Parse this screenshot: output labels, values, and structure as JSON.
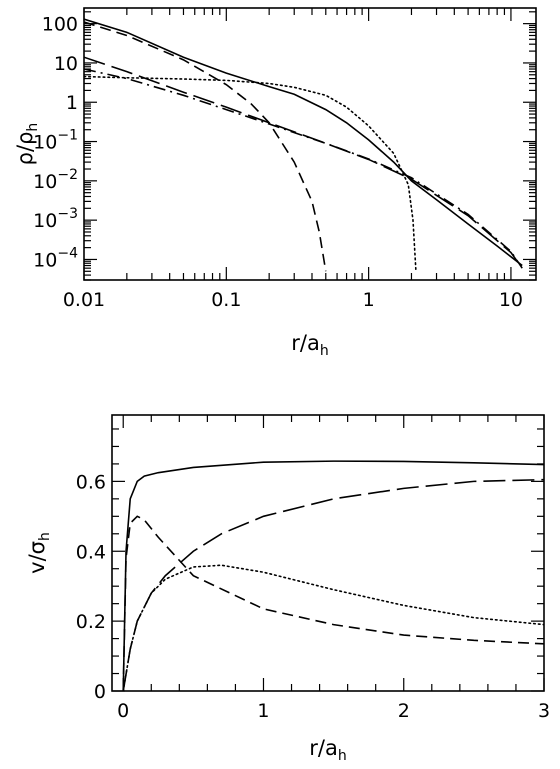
{
  "chart_data": [
    {
      "type": "line",
      "xlabel": "r/a_h",
      "ylabel": "ρ/ρ_h",
      "xscale": "log",
      "yscale": "log",
      "xlim": [
        0.01,
        15
      ],
      "ylim": [
        3e-05,
        250
      ],
      "xticks": [
        {
          "value": 0.01,
          "label": "0.01"
        },
        {
          "value": 0.1,
          "label": "0.1"
        },
        {
          "value": 1,
          "label": "1"
        },
        {
          "value": 10,
          "label": "10"
        }
      ],
      "yticks": [
        {
          "value": 100,
          "label": "100",
          "base": "",
          "exp": ""
        },
        {
          "value": 10,
          "label": "10",
          "base": "",
          "exp": ""
        },
        {
          "value": 1,
          "label": "1",
          "base": "",
          "exp": ""
        },
        {
          "value": 0.1,
          "label": "",
          "base": "10",
          "exp": "−1"
        },
        {
          "value": 0.01,
          "label": "",
          "base": "10",
          "exp": "−2"
        },
        {
          "value": 0.001,
          "label": "",
          "base": "10",
          "exp": "−3"
        },
        {
          "value": 0.0001,
          "label": "",
          "base": "10",
          "exp": "−4"
        }
      ],
      "series": [
        {
          "style": "solid",
          "x": [
            0.01,
            0.02,
            0.05,
            0.1,
            0.2,
            0.3,
            0.5,
            0.7,
            1,
            1.5,
            2,
            3,
            5,
            8,
            12
          ],
          "y": [
            130,
            60,
            14,
            5.5,
            2.5,
            1.6,
            0.65,
            0.3,
            0.11,
            0.03,
            0.01,
            0.0033,
            0.0008,
            0.00022,
            7e-05
          ]
        },
        {
          "style": "dashed",
          "x": [
            0.01,
            0.02,
            0.05,
            0.1,
            0.15,
            0.2,
            0.3,
            0.4,
            0.45,
            0.5
          ],
          "y": [
            110,
            50,
            12,
            2.8,
            0.9,
            0.3,
            0.03,
            0.003,
            0.0005,
            5e-05
          ]
        },
        {
          "style": "dotted",
          "x": [
            0.01,
            0.02,
            0.05,
            0.1,
            0.2,
            0.3,
            0.5,
            0.7,
            1,
            1.5,
            1.9,
            2.05,
            2.15
          ],
          "y": [
            4.5,
            4.2,
            3.9,
            3.6,
            3.0,
            2.4,
            1.5,
            0.75,
            0.25,
            0.05,
            0.008,
            0.001,
            5e-05
          ]
        },
        {
          "style": "long-dashed",
          "x": [
            0.01,
            0.02,
            0.05,
            0.1,
            0.2,
            0.5,
            1,
            2,
            5,
            10,
            12
          ],
          "y": [
            14,
            6,
            1.8,
            0.75,
            0.3,
            0.09,
            0.035,
            0.011,
            0.0013,
            0.00015,
            6e-05
          ]
        },
        {
          "style": "dash-dot",
          "x": [
            0.01,
            0.02,
            0.05,
            0.1,
            0.2,
            0.5,
            1,
            2,
            5,
            10,
            12
          ],
          "y": [
            7,
            4,
            1.5,
            0.65,
            0.28,
            0.09,
            0.036,
            0.012,
            0.0014,
            0.00016,
            6e-05
          ]
        }
      ]
    },
    {
      "type": "line",
      "xlabel": "r/a_h",
      "ylabel": "v/σ_h",
      "xlim": [
        -0.08,
        3
      ],
      "ylim": [
        0,
        0.79
      ],
      "xticks": [
        {
          "value": 0,
          "label": "0"
        },
        {
          "value": 1,
          "label": "1"
        },
        {
          "value": 2,
          "label": "2"
        },
        {
          "value": 3,
          "label": "3"
        }
      ],
      "yticks": [
        {
          "value": 0,
          "label": "0"
        },
        {
          "value": 0.2,
          "label": "0.2"
        },
        {
          "value": 0.4,
          "label": "0.4"
        },
        {
          "value": 0.6,
          "label": "0.6"
        }
      ],
      "series": [
        {
          "style": "solid",
          "x": [
            0,
            0.02,
            0.05,
            0.1,
            0.15,
            0.25,
            0.5,
            1,
            1.5,
            2,
            2.5,
            3
          ],
          "y": [
            0,
            0.4,
            0.55,
            0.6,
            0.615,
            0.625,
            0.64,
            0.655,
            0.658,
            0.657,
            0.653,
            0.648
          ]
        },
        {
          "style": "dashed",
          "x": [
            0,
            0.02,
            0.05,
            0.1,
            0.15,
            0.25,
            0.5,
            1,
            1.5,
            2,
            2.5,
            3
          ],
          "y": [
            0,
            0.38,
            0.48,
            0.5,
            0.49,
            0.44,
            0.33,
            0.235,
            0.19,
            0.16,
            0.145,
            0.135
          ]
        },
        {
          "style": "dotted",
          "x": [
            0,
            0.05,
            0.1,
            0.2,
            0.3,
            0.5,
            0.7,
            1,
            1.5,
            2,
            2.5,
            3
          ],
          "y": [
            0,
            0.12,
            0.2,
            0.28,
            0.32,
            0.355,
            0.36,
            0.34,
            0.29,
            0.245,
            0.21,
            0.19
          ]
        },
        {
          "style": "long-dashed",
          "x": [
            0,
            0.05,
            0.1,
            0.2,
            0.3,
            0.5,
            0.7,
            1,
            1.5,
            2,
            2.5,
            3
          ],
          "y": [
            0,
            0.12,
            0.2,
            0.28,
            0.33,
            0.4,
            0.45,
            0.5,
            0.55,
            0.58,
            0.6,
            0.605
          ]
        }
      ]
    }
  ]
}
